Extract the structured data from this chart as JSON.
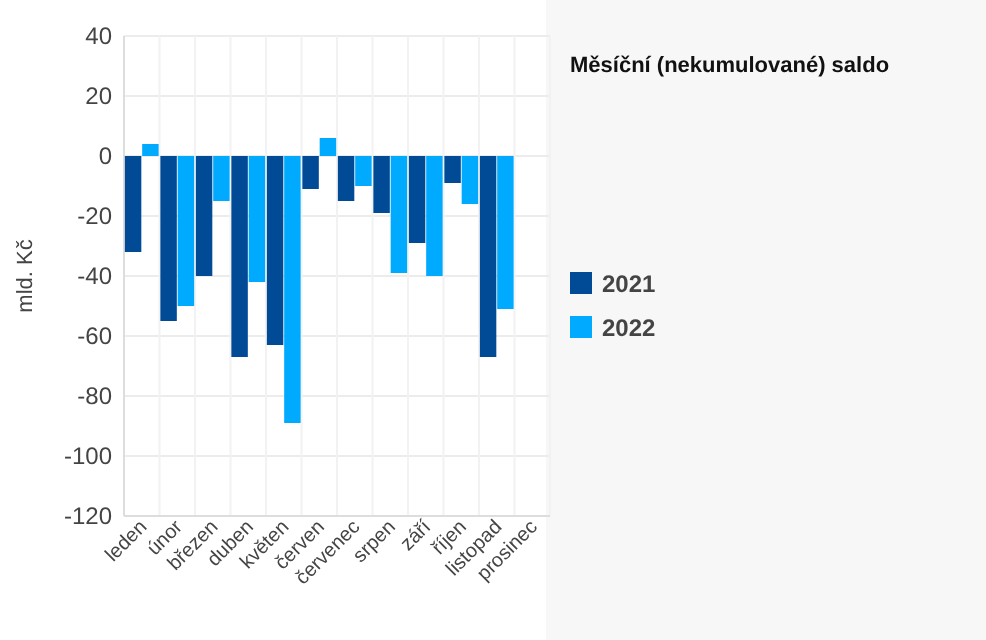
{
  "chart_data": {
    "type": "bar",
    "title": "Měsíční (nekumulované) saldo",
    "ylabel": "mld. Kč",
    "categories": [
      "leden",
      "únor",
      "březen",
      "duben",
      "květen",
      "červen",
      "červenec",
      "srpen",
      "září",
      "říjen",
      "listopad",
      "prosinec"
    ],
    "series": [
      {
        "name": "2021",
        "color": "#004a96",
        "values": [
          -32,
          -55,
          -40,
          -67,
          -63,
          -11,
          -15,
          -19,
          -29,
          -9,
          -67,
          null
        ]
      },
      {
        "name": "2022",
        "color": "#00aaff",
        "values": [
          4,
          -50,
          -15,
          -42,
          -89,
          6,
          -10,
          -39,
          -40,
          -16,
          -51,
          null
        ]
      }
    ],
    "ylim": [
      -120,
      40
    ],
    "yticks": [
      -120,
      -100,
      -80,
      -60,
      -40,
      -20,
      0,
      20,
      40
    ],
    "grid": true,
    "legend": "right"
  }
}
